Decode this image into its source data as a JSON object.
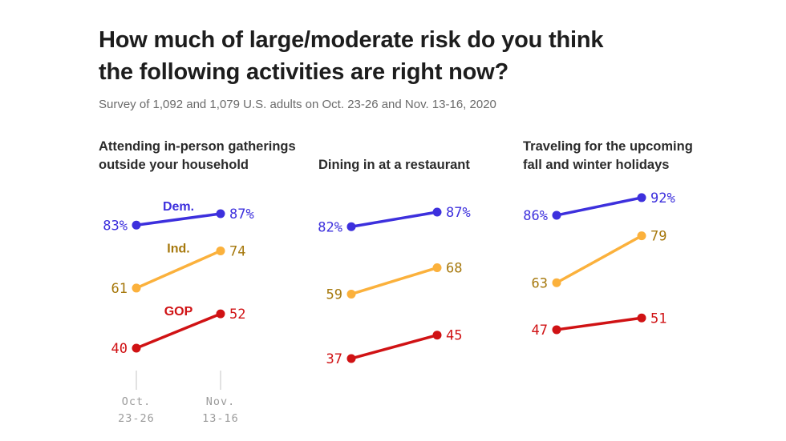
{
  "title": {
    "line1": "How much of large/moderate risk do you think",
    "line2": "the following activities are right now?"
  },
  "subtitle": "Survey of 1,092 and 1,079 U.S. adults on Oct. 23-26 and Nov. 13-16, 2020",
  "colors": {
    "dem": "#3d30dd",
    "ind_line": "#fbb13c",
    "ind_text": "#a6780c",
    "gop": "#d01214",
    "axis_tick": "#d9d9d9",
    "axis_label": "#9b9b9b",
    "title_text": "#1d1d1d",
    "subtitle_text": "#6b6b6b",
    "panel_title_text": "#2b2b2b"
  },
  "chart_data": {
    "type": "line",
    "subtype": "slope-chart",
    "x_categories": [
      "Oct. 23-26",
      "Nov. 13-16"
    ],
    "x_tick_labels": [
      {
        "line1": "Oct.",
        "line2": "23-26"
      },
      {
        "line1": "Nov.",
        "line2": "13-16"
      }
    ],
    "legend_position": "inline-first-panel",
    "grid": false,
    "panels": [
      {
        "title": "Attending in-person gatherings outside your household",
        "title_lines": [
          "Attending in-person gatherings",
          "outside your household"
        ],
        "show_series_labels": true,
        "show_x_axis": true,
        "series": [
          {
            "name": "Dem.",
            "values": [
              83,
              87
            ],
            "labels": [
              "83%",
              "87%"
            ]
          },
          {
            "name": "Ind.",
            "values": [
              61,
              74
            ],
            "labels": [
              "61",
              "74"
            ]
          },
          {
            "name": "GOP",
            "values": [
              40,
              52
            ],
            "labels": [
              "40",
              "52"
            ]
          }
        ]
      },
      {
        "title": "Dining in at a restaurant",
        "title_lines": [
          "Dining in at a restaurant"
        ],
        "show_series_labels": false,
        "show_x_axis": false,
        "series": [
          {
            "name": "Dem.",
            "values": [
              82,
              87
            ],
            "labels": [
              "82%",
              "87%"
            ]
          },
          {
            "name": "Ind.",
            "values": [
              59,
              68
            ],
            "labels": [
              "59",
              "68"
            ]
          },
          {
            "name": "GOP",
            "values": [
              37,
              45
            ],
            "labels": [
              "37",
              "45"
            ]
          }
        ]
      },
      {
        "title": "Traveling for the upcoming fall and winter holidays",
        "title_lines": [
          "Traveling for the upcoming",
          "fall and winter holidays"
        ],
        "show_series_labels": false,
        "show_x_axis": false,
        "series": [
          {
            "name": "Dem.",
            "values": [
              86,
              92
            ],
            "labels": [
              "86%",
              "92%"
            ]
          },
          {
            "name": "Ind.",
            "values": [
              63,
              79
            ],
            "labels": [
              "63",
              "79"
            ]
          },
          {
            "name": "GOP",
            "values": [
              47,
              51
            ],
            "labels": [
              "47",
              "51"
            ]
          }
        ]
      }
    ]
  }
}
